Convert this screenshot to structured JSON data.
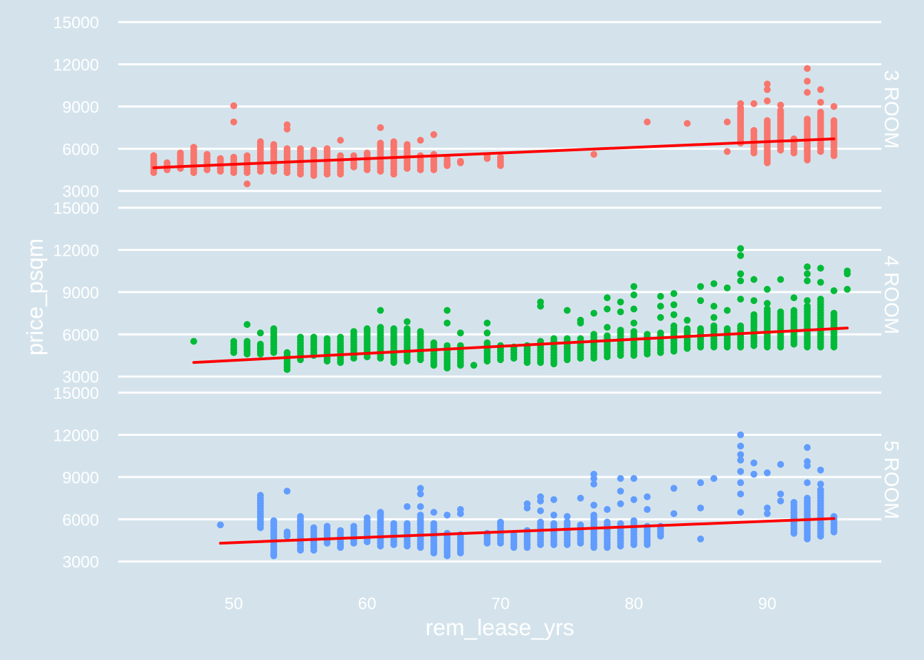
{
  "chart_data": {
    "type": "scatter",
    "xlabel": "rem_lease_yrs",
    "ylabel": "price_psqm",
    "x_ticks": [
      50,
      60,
      70,
      80,
      90
    ],
    "y_ticks": [
      3000,
      6000,
      9000,
      12000,
      15000
    ],
    "xlim": [
      42,
      99
    ],
    "ylim": [
      2400,
      15200
    ],
    "colors": {
      "background": "#d4e3eb",
      "grid": "#ffffff",
      "text": "#ffffff",
      "trend": "#ff0000",
      "3 ROOM": "#f8766d",
      "4 ROOM": "#00ba38",
      "5 ROOM": "#619cff"
    },
    "panels": [
      {
        "name": "3 ROOM",
        "trend": {
          "x": [
            44,
            95
          ],
          "y": [
            4650,
            6700
          ]
        },
        "columns": [
          [
            44,
            4300,
            5500
          ],
          [
            45,
            4500,
            5000
          ],
          [
            46,
            4600,
            5700
          ],
          [
            47,
            4300,
            6100
          ],
          [
            48,
            4500,
            5600
          ],
          [
            49,
            4400,
            5300
          ],
          [
            50,
            4300,
            5400
          ],
          [
            51,
            4300,
            5500
          ],
          [
            52,
            4400,
            6500
          ],
          [
            53,
            4400,
            6300
          ],
          [
            54,
            4300,
            6000
          ],
          [
            55,
            4200,
            6000
          ],
          [
            56,
            4100,
            5900
          ],
          [
            57,
            4200,
            6000
          ],
          [
            58,
            4200,
            5500
          ],
          [
            59,
            4700,
            5500
          ],
          [
            60,
            4500,
            5700
          ],
          [
            61,
            4400,
            6400
          ],
          [
            62,
            4200,
            6500
          ],
          [
            63,
            4600,
            6300
          ],
          [
            64,
            4500,
            5500
          ],
          [
            65,
            4500,
            5600
          ],
          [
            66,
            4800,
            5300
          ],
          [
            67,
            5000,
            5100
          ],
          [
            69,
            5300,
            5500
          ],
          [
            70,
            4800,
            5400
          ],
          [
            88,
            6400,
            8900
          ],
          [
            89,
            5700,
            7200
          ],
          [
            90,
            5000,
            8000
          ],
          [
            91,
            5900,
            8700
          ],
          [
            92,
            5700,
            6700
          ],
          [
            93,
            5200,
            8100
          ],
          [
            94,
            5800,
            8600
          ],
          [
            95,
            5500,
            8000
          ]
        ],
        "extra_points": [
          [
            44,
            5500
          ],
          [
            46,
            4700
          ],
          [
            47,
            6100
          ],
          [
            50,
            9050
          ],
          [
            50,
            7900
          ],
          [
            51,
            3500
          ],
          [
            53,
            6200
          ],
          [
            54,
            7700
          ],
          [
            54,
            7400
          ],
          [
            58,
            6600
          ],
          [
            61,
            7500
          ],
          [
            64,
            6600
          ],
          [
            65,
            7000
          ],
          [
            66,
            4900
          ],
          [
            77,
            5600
          ],
          [
            81,
            7900
          ],
          [
            84,
            7800
          ],
          [
            87,
            7900
          ],
          [
            87,
            5800
          ],
          [
            88,
            9200
          ],
          [
            89,
            9200
          ],
          [
            89,
            7300
          ],
          [
            90,
            10600
          ],
          [
            90,
            10200
          ],
          [
            90,
            9400
          ],
          [
            91,
            9100
          ],
          [
            91,
            8400
          ],
          [
            93,
            11700
          ],
          [
            93,
            10800
          ],
          [
            93,
            10000
          ],
          [
            94,
            10200
          ],
          [
            94,
            9300
          ],
          [
            95,
            9000
          ]
        ]
      },
      {
        "name": "4 ROOM",
        "trend": {
          "x": [
            47,
            96
          ],
          "y": [
            4000,
            6450
          ]
        },
        "columns": [
          [
            50,
            4700,
            5500
          ],
          [
            51,
            4600,
            5500
          ],
          [
            52,
            4600,
            5300
          ],
          [
            53,
            4700,
            6400
          ],
          [
            54,
            3700,
            4700
          ],
          [
            55,
            4200,
            5800
          ],
          [
            56,
            4500,
            5800
          ],
          [
            57,
            4100,
            5700
          ],
          [
            58,
            4000,
            5800
          ],
          [
            59,
            4300,
            6200
          ],
          [
            60,
            4400,
            6400
          ],
          [
            61,
            4300,
            6500
          ],
          [
            62,
            4000,
            6400
          ],
          [
            63,
            4100,
            6400
          ],
          [
            64,
            4200,
            6200
          ],
          [
            65,
            3800,
            5400
          ],
          [
            66,
            3600,
            5200
          ],
          [
            67,
            3800,
            5200
          ],
          [
            69,
            4100,
            5400
          ],
          [
            70,
            4200,
            5200
          ],
          [
            71,
            4300,
            5100
          ],
          [
            72,
            4000,
            5200
          ],
          [
            73,
            4000,
            5500
          ],
          [
            74,
            3900,
            5700
          ],
          [
            75,
            4200,
            5700
          ],
          [
            76,
            4300,
            5700
          ],
          [
            77,
            4300,
            6000
          ],
          [
            78,
            4400,
            5900
          ],
          [
            79,
            4500,
            6300
          ],
          [
            80,
            4500,
            6200
          ],
          [
            81,
            4600,
            6000
          ],
          [
            82,
            4700,
            6100
          ],
          [
            83,
            4800,
            6600
          ],
          [
            84,
            5000,
            6400
          ],
          [
            85,
            5100,
            6400
          ],
          [
            86,
            5100,
            6600
          ],
          [
            87,
            5100,
            6400
          ],
          [
            88,
            5100,
            6600
          ],
          [
            89,
            5200,
            7400
          ],
          [
            90,
            5100,
            7800
          ],
          [
            91,
            5100,
            7600
          ],
          [
            92,
            5300,
            7700
          ],
          [
            93,
            5100,
            8000
          ],
          [
            94,
            5100,
            8500
          ],
          [
            95,
            5100,
            7500
          ]
        ],
        "extra_points": [
          [
            47,
            5500
          ],
          [
            51,
            6700
          ],
          [
            52,
            6100
          ],
          [
            54,
            3500
          ],
          [
            61,
            7700
          ],
          [
            63,
            6900
          ],
          [
            66,
            7700
          ],
          [
            66,
            6800
          ],
          [
            67,
            6100
          ],
          [
            68,
            3800
          ],
          [
            69,
            6800
          ],
          [
            69,
            6100
          ],
          [
            73,
            8300
          ],
          [
            73,
            8000
          ],
          [
            75,
            7700
          ],
          [
            76,
            7000
          ],
          [
            76,
            6800
          ],
          [
            77,
            7500
          ],
          [
            78,
            8600
          ],
          [
            78,
            7800
          ],
          [
            78,
            6500
          ],
          [
            79,
            8300
          ],
          [
            79,
            7600
          ],
          [
            80,
            9400
          ],
          [
            80,
            8800
          ],
          [
            80,
            7800
          ],
          [
            80,
            6800
          ],
          [
            82,
            8700
          ],
          [
            82,
            8000
          ],
          [
            82,
            7200
          ],
          [
            83,
            8900
          ],
          [
            83,
            8100
          ],
          [
            83,
            7400
          ],
          [
            84,
            7000
          ],
          [
            85,
            9400
          ],
          [
            85,
            8400
          ],
          [
            86,
            9600
          ],
          [
            86,
            8000
          ],
          [
            86,
            7200
          ],
          [
            87,
            9300
          ],
          [
            87,
            7700
          ],
          [
            88,
            12100
          ],
          [
            88,
            11600
          ],
          [
            88,
            10300
          ],
          [
            88,
            9800
          ],
          [
            88,
            8500
          ],
          [
            89,
            9900
          ],
          [
            89,
            8400
          ],
          [
            90,
            9200
          ],
          [
            90,
            8200
          ],
          [
            91,
            9900
          ],
          [
            92,
            8600
          ],
          [
            93,
            10800
          ],
          [
            93,
            10300
          ],
          [
            93,
            9800
          ],
          [
            93,
            8400
          ],
          [
            94,
            10700
          ],
          [
            94,
            9700
          ],
          [
            95,
            9100
          ],
          [
            96,
            10500
          ],
          [
            96,
            10300
          ],
          [
            96,
            9200
          ]
        ]
      },
      {
        "name": "5 ROOM",
        "trend": {
          "x": [
            49,
            95
          ],
          "y": [
            4300,
            6050
          ]
        },
        "columns": [
          [
            52,
            5400,
            7700
          ],
          [
            53,
            3400,
            5900
          ],
          [
            54,
            4800,
            5100
          ],
          [
            55,
            3800,
            6200
          ],
          [
            56,
            3800,
            5400
          ],
          [
            57,
            4300,
            5500
          ],
          [
            58,
            4000,
            5200
          ],
          [
            59,
            4300,
            5500
          ],
          [
            60,
            4400,
            5900
          ],
          [
            61,
            4100,
            6400
          ],
          [
            62,
            4200,
            5700
          ],
          [
            63,
            4100,
            5700
          ],
          [
            64,
            4000,
            6300
          ],
          [
            65,
            3600,
            5700
          ],
          [
            66,
            3400,
            5000
          ],
          [
            67,
            3600,
            4900
          ],
          [
            69,
            4300,
            5000
          ],
          [
            70,
            4300,
            5700
          ],
          [
            71,
            4000,
            4900
          ],
          [
            72,
            4000,
            5200
          ],
          [
            73,
            4200,
            5800
          ],
          [
            74,
            4200,
            5700
          ],
          [
            75,
            4200,
            5800
          ],
          [
            76,
            4300,
            5600
          ],
          [
            77,
            4000,
            6300
          ],
          [
            78,
            4000,
            5800
          ],
          [
            79,
            4100,
            5700
          ],
          [
            80,
            4200,
            5900
          ],
          [
            81,
            4200,
            5500
          ],
          [
            82,
            4800,
            5500
          ],
          [
            92,
            5000,
            7200
          ],
          [
            93,
            4600,
            7500
          ],
          [
            94,
            4800,
            8100
          ],
          [
            95,
            5100,
            6200
          ]
        ],
        "extra_points": [
          [
            49,
            5600
          ],
          [
            53,
            3500
          ],
          [
            54,
            8000
          ],
          [
            60,
            6100
          ],
          [
            61,
            6500
          ],
          [
            63,
            6900
          ],
          [
            64,
            8200
          ],
          [
            64,
            7800
          ],
          [
            64,
            6900
          ],
          [
            65,
            6500
          ],
          [
            66,
            6300
          ],
          [
            67,
            6700
          ],
          [
            67,
            6400
          ],
          [
            70,
            5800
          ],
          [
            72,
            7100
          ],
          [
            72,
            6800
          ],
          [
            73,
            7600
          ],
          [
            73,
            7300
          ],
          [
            73,
            6600
          ],
          [
            74,
            7400
          ],
          [
            74,
            6300
          ],
          [
            75,
            6200
          ],
          [
            76,
            7500
          ],
          [
            77,
            9200
          ],
          [
            77,
            8900
          ],
          [
            77,
            8500
          ],
          [
            77,
            7000
          ],
          [
            78,
            6700
          ],
          [
            79,
            8900
          ],
          [
            79,
            8000
          ],
          [
            79,
            7100
          ],
          [
            80,
            8900
          ],
          [
            80,
            7400
          ],
          [
            81,
            7600
          ],
          [
            81,
            6700
          ],
          [
            83,
            8200
          ],
          [
            83,
            6400
          ],
          [
            85,
            8600
          ],
          [
            85,
            6800
          ],
          [
            85,
            4600
          ],
          [
            86,
            8900
          ],
          [
            88,
            12000
          ],
          [
            88,
            11200
          ],
          [
            88,
            10600
          ],
          [
            88,
            10200
          ],
          [
            88,
            9400
          ],
          [
            88,
            8600
          ],
          [
            88,
            7800
          ],
          [
            88,
            6500
          ],
          [
            89,
            10000
          ],
          [
            89,
            9200
          ],
          [
            90,
            9300
          ],
          [
            90,
            6800
          ],
          [
            90,
            6400
          ],
          [
            91,
            9900
          ],
          [
            91,
            7800
          ],
          [
            91,
            7300
          ],
          [
            93,
            11100
          ],
          [
            93,
            10100
          ],
          [
            93,
            9800
          ],
          [
            93,
            8600
          ],
          [
            94,
            9500
          ],
          [
            94,
            8500
          ]
        ]
      }
    ]
  }
}
